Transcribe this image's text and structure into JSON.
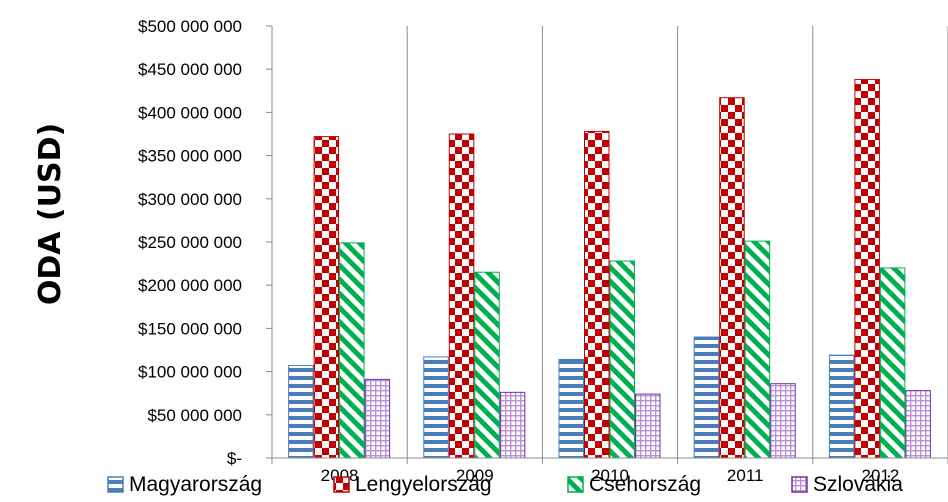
{
  "chart_data": {
    "type": "bar",
    "title": "",
    "xlabel": "",
    "ylabel": "ODA (USD)",
    "categories": [
      "2008",
      "2009",
      "2010",
      "2011",
      "2012"
    ],
    "ylim": [
      0,
      500000000
    ],
    "yticks": [
      {
        "value": 0,
        "label": "$-"
      },
      {
        "value": 50000000,
        "label": "$50 000 000"
      },
      {
        "value": 100000000,
        "label": "$100 000 000"
      },
      {
        "value": 150000000,
        "label": "$150 000 000"
      },
      {
        "value": 200000000,
        "label": "$200 000 000"
      },
      {
        "value": 250000000,
        "label": "$250 000 000"
      },
      {
        "value": 300000000,
        "label": "$300 000 000"
      },
      {
        "value": 350000000,
        "label": "$350 000 000"
      },
      {
        "value": 400000000,
        "label": "$400 000 000"
      },
      {
        "value": 450000000,
        "label": "$450 000 000"
      },
      {
        "value": 500000000,
        "label": "$500 000 000"
      }
    ],
    "grid": "vertical",
    "legend_position": "bottom",
    "series": [
      {
        "name": "Magyarország",
        "values": [
          107000000,
          117000000,
          114000000,
          140000000,
          119000000
        ],
        "color": "#4a7ebb",
        "pattern": "horizontal-stripes"
      },
      {
        "name": "Lengyelország",
        "values": [
          372000000,
          375000000,
          378000000,
          417000000,
          438000000
        ],
        "color": "#c00000",
        "pattern": "checkerboard"
      },
      {
        "name": "Csehország",
        "values": [
          249000000,
          215000000,
          228000000,
          251000000,
          220000000
        ],
        "color": "#00b050",
        "pattern": "diagonal-stripes"
      },
      {
        "name": "Szlovákia",
        "values": [
          91000000,
          76000000,
          74000000,
          86000000,
          78000000
        ],
        "color": "#7030a0",
        "pattern": "dotted-grid"
      }
    ]
  }
}
